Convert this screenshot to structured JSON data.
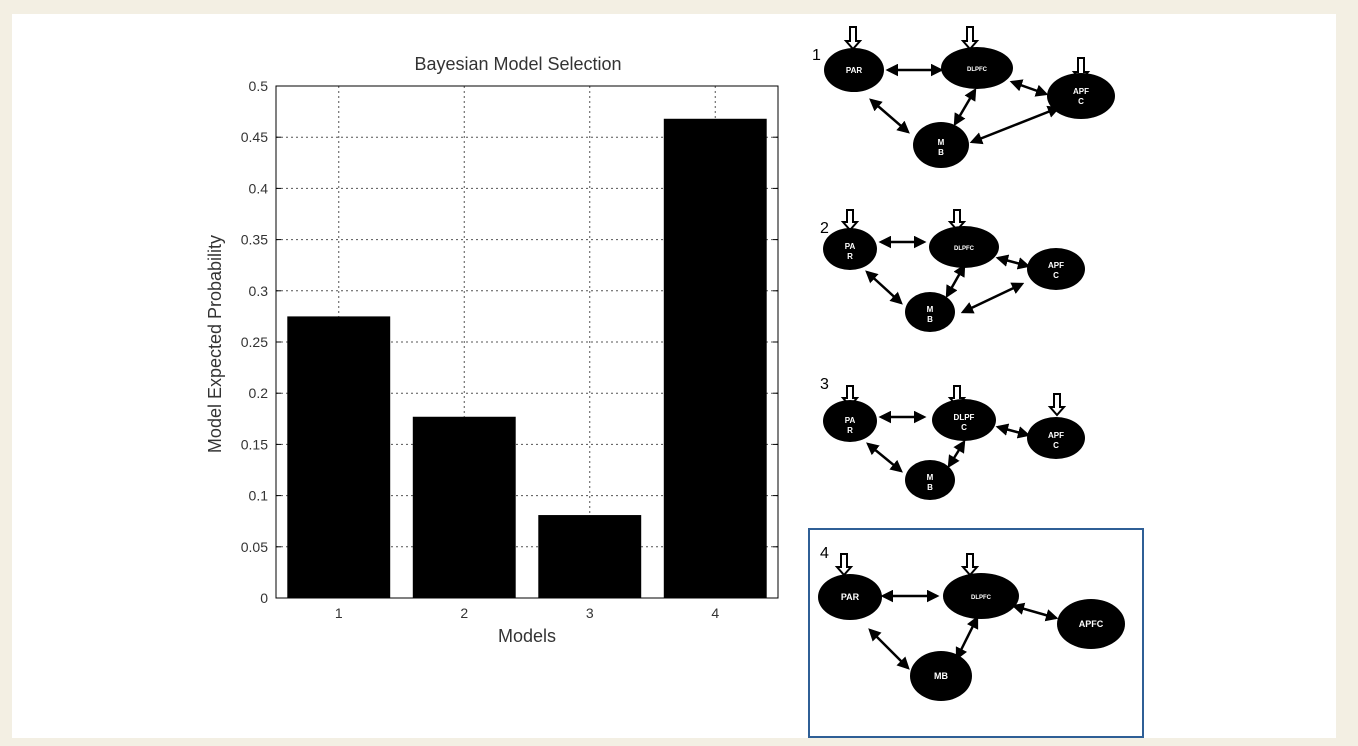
{
  "chart_data": {
    "type": "bar",
    "title": "Bayesian Model Selection",
    "xlabel": "Models",
    "ylabel": "Model Expected Probability",
    "categories": [
      "1",
      "2",
      "3",
      "4"
    ],
    "values": [
      0.275,
      0.177,
      0.081,
      0.468
    ],
    "ylim": [
      0,
      0.5
    ],
    "yticks": [
      0,
      0.05,
      0.1,
      0.15,
      0.2,
      0.25,
      0.3,
      0.35,
      0.4,
      0.45,
      0.5
    ],
    "ytick_labels": [
      "0",
      "0.05",
      "0.1",
      "0.15",
      "0.2",
      "0.25",
      "0.3",
      "0.35",
      "0.4",
      "0.45",
      "0.5"
    ],
    "grid": true,
    "bar_color": "#000000"
  },
  "diagrams": {
    "model1": {
      "number": "1",
      "nodes": {
        "par": "PAR",
        "dlpfc": "DLPFC",
        "apfc_a": "APF",
        "apfc_b": "C",
        "mb_a": "M",
        "mb_b": "B"
      }
    },
    "model2": {
      "number": "2",
      "nodes": {
        "par_a": "PA",
        "par_b": "R",
        "dlpfc": "DLPFC",
        "apfc_a": "APF",
        "apfc_b": "C",
        "mb_a": "M",
        "mb_b": "B"
      }
    },
    "model3": {
      "number": "3",
      "nodes": {
        "par_a": "PA",
        "par_b": "R",
        "dlpfc_a": "DLPF",
        "dlpfc_b": "C",
        "apfc_a": "APF",
        "apfc_b": "C",
        "mb_a": "M",
        "mb_b": "B"
      }
    },
    "model4": {
      "number": "4",
      "nodes": {
        "par": "PAR",
        "dlpfc": "DLPFC",
        "apfc": "APFC",
        "mb": "MB"
      },
      "highlight_color": "#2f5f96"
    }
  }
}
